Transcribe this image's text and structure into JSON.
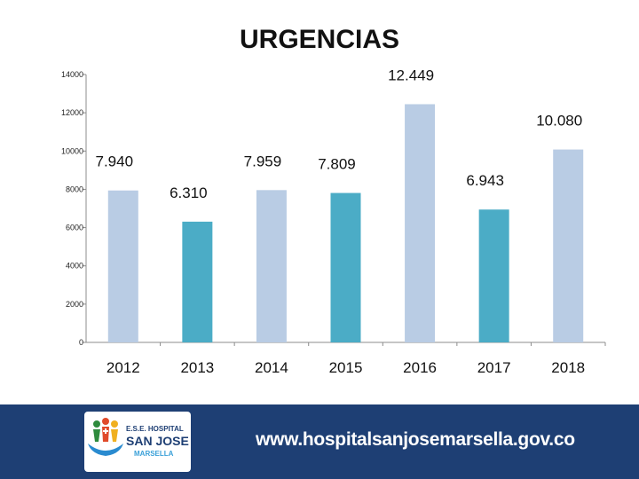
{
  "chart_data": {
    "type": "bar",
    "title": "URGENCIAS",
    "categories": [
      "2012",
      "2013",
      "2014",
      "2015",
      "2016",
      "2017",
      "2018"
    ],
    "values": [
      7940,
      6310,
      7959,
      7809,
      12449,
      6943,
      10080
    ],
    "data_labels": [
      "7.940",
      "6.310",
      "7.959",
      "7.809",
      "12.449",
      "6.943",
      "10.080"
    ],
    "bar_colors": [
      "#b9cce4",
      "#4bacc6",
      "#b9cce4",
      "#4bacc6",
      "#b9cce4",
      "#4bacc6",
      "#b9cce4"
    ],
    "ylim": [
      0,
      14000
    ],
    "yticks": [
      0,
      2000,
      4000,
      6000,
      8000,
      10000,
      12000,
      14000
    ],
    "grid": false,
    "xlabel": "",
    "ylabel": ""
  },
  "footer": {
    "background": "#1e3f74",
    "url": "www.hospitalsanjosemarsella.gov.co",
    "logo": {
      "line1": "E.S.E. HOSPITAL",
      "line2": "SAN JOSE",
      "line3": "MARSELLA"
    }
  }
}
